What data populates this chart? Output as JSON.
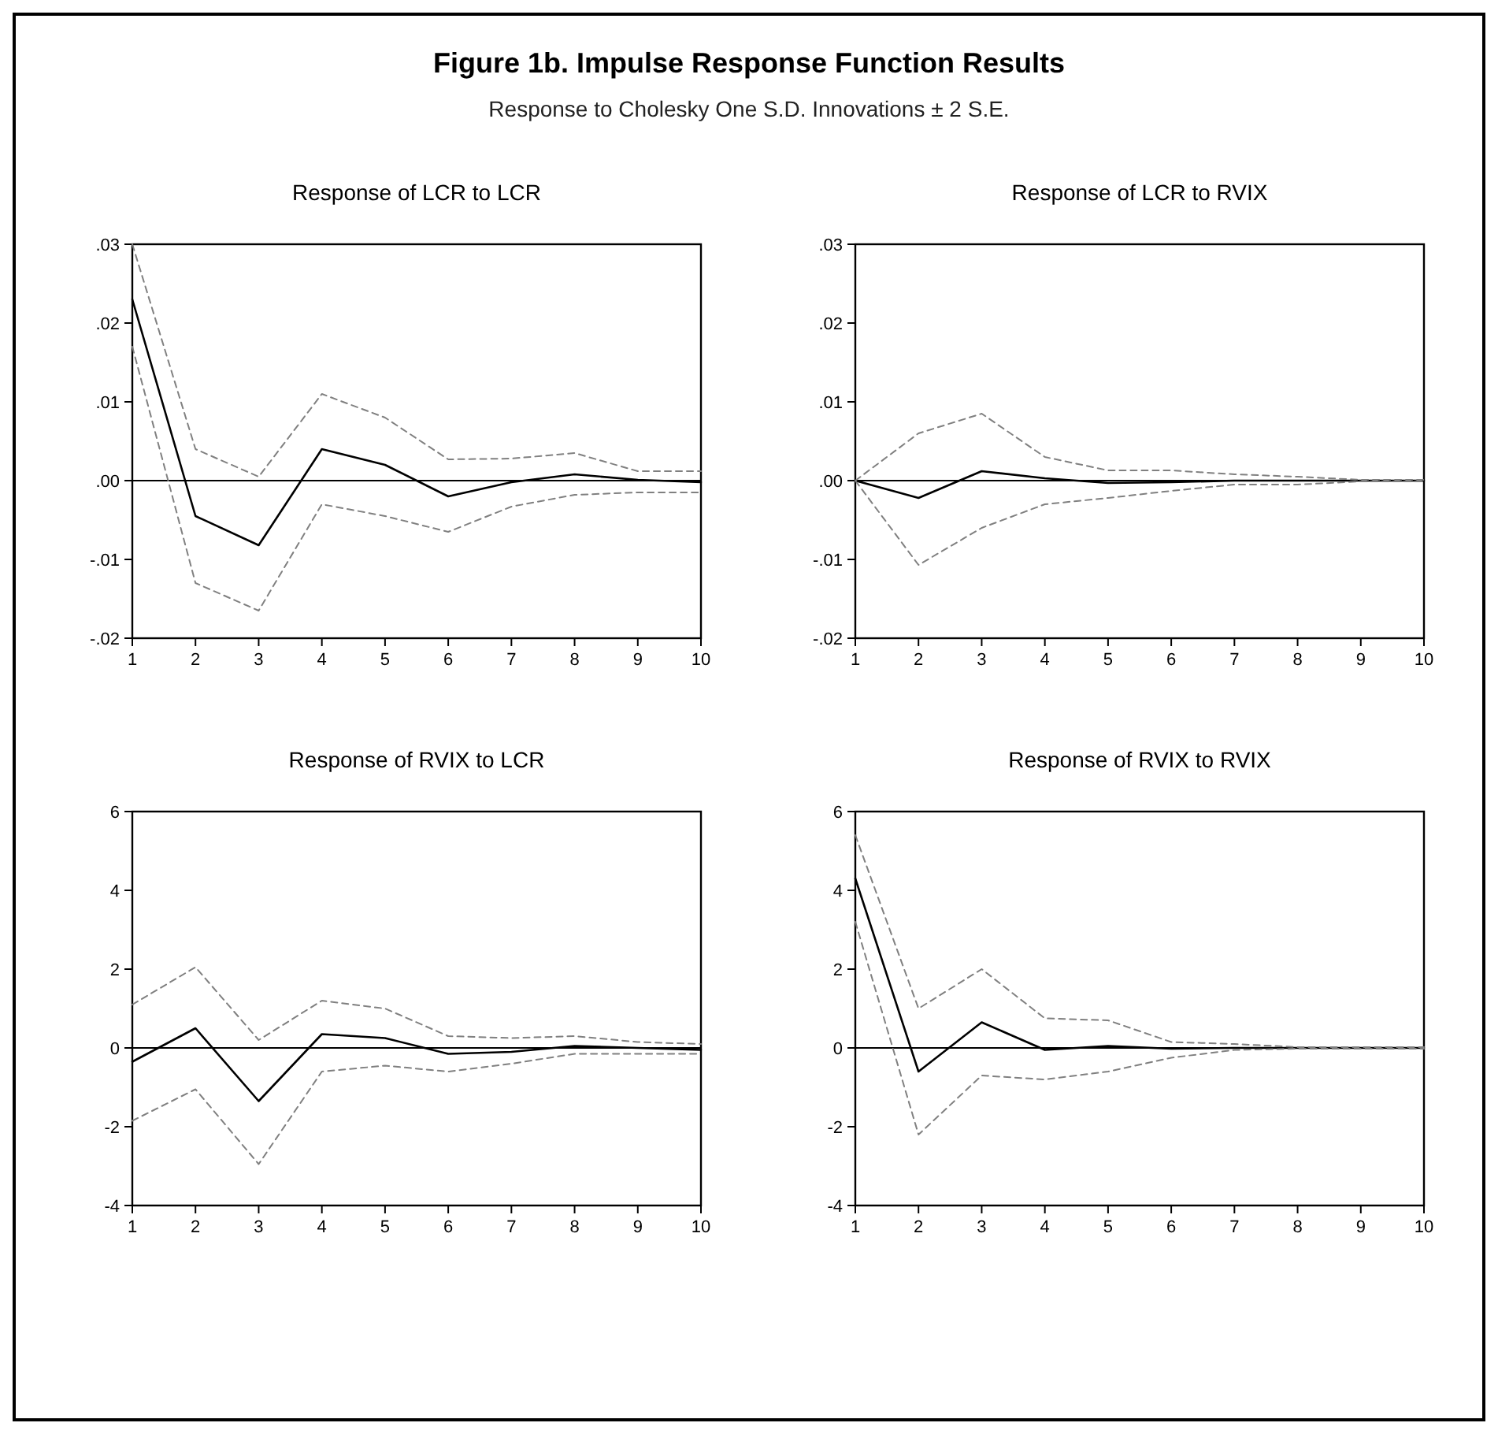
{
  "chart_data": [
    {
      "type": "other",
      "title": "Figure 1b. Impulse Response Function Results",
      "subtitle": "Response to Cholesky One S.D. Innovations ± 2 S.E."
    },
    {
      "type": "line",
      "title": "Response of LCR to LCR",
      "x": [
        1,
        2,
        3,
        4,
        5,
        6,
        7,
        8,
        9,
        10
      ],
      "xlim": [
        1,
        10
      ],
      "xticks": [
        1,
        2,
        3,
        4,
        5,
        6,
        7,
        8,
        9,
        10
      ],
      "ylim": [
        -0.02,
        0.03
      ],
      "yticks": [
        {
          "value": -0.02,
          "label": "-.02"
        },
        {
          "value": -0.01,
          "label": "-.01"
        },
        {
          "value": 0,
          "label": ".00"
        },
        {
          "value": 0.01,
          "label": ".01"
        },
        {
          "value": 0.02,
          "label": ".02"
        },
        {
          "value": 0.03,
          "label": ".03"
        }
      ],
      "grid": false,
      "marker": "none",
      "ref_lines": [
        {
          "axis": "y",
          "value": 0,
          "color": "#000000"
        }
      ],
      "series": [
        {
          "color": "#000000",
          "line_style": "solid",
          "values": [
            0.023,
            -0.0045,
            -0.0082,
            0.004,
            0.002,
            -0.002,
            -0.0002,
            0.0008,
            0.0001,
            -0.0002
          ]
        },
        {
          "color": "#808080",
          "line_style": "dashed",
          "values": [
            0.03,
            0.004,
            0.0005,
            0.011,
            0.008,
            0.0027,
            0.0028,
            0.0035,
            0.0012,
            0.0012
          ]
        },
        {
          "color": "#808080",
          "line_style": "dashed",
          "values": [
            0.017,
            -0.013,
            -0.0165,
            -0.003,
            -0.0045,
            -0.0065,
            -0.0033,
            -0.0018,
            -0.0015,
            -0.0015
          ]
        }
      ]
    },
    {
      "type": "line",
      "title": "Response of LCR to RVIX",
      "x": [
        1,
        2,
        3,
        4,
        5,
        6,
        7,
        8,
        9,
        10
      ],
      "xlim": [
        1,
        10
      ],
      "xticks": [
        1,
        2,
        3,
        4,
        5,
        6,
        7,
        8,
        9,
        10
      ],
      "ylim": [
        -0.02,
        0.03
      ],
      "yticks": [
        {
          "value": -0.02,
          "label": "-.02"
        },
        {
          "value": -0.01,
          "label": "-.01"
        },
        {
          "value": 0,
          "label": ".00"
        },
        {
          "value": 0.01,
          "label": ".01"
        },
        {
          "value": 0.02,
          "label": ".02"
        },
        {
          "value": 0.03,
          "label": ".03"
        }
      ],
      "grid": false,
      "marker": "none",
      "ref_lines": [
        {
          "axis": "y",
          "value": 0,
          "color": "#000000"
        }
      ],
      "series": [
        {
          "color": "#000000",
          "line_style": "solid",
          "values": [
            0,
            -0.0022,
            0.0012,
            0.0003,
            -0.0003,
            -0.0002,
            0,
            0,
            0,
            0
          ]
        },
        {
          "color": "#808080",
          "line_style": "dashed",
          "values": [
            0,
            0.006,
            0.0085,
            0.003,
            0.0013,
            0.0013,
            0.0008,
            0.0005,
            0.0001,
            0.0001
          ]
        },
        {
          "color": "#808080",
          "line_style": "dashed",
          "values": [
            0,
            -0.0107,
            -0.006,
            -0.003,
            -0.0022,
            -0.0013,
            -0.0005,
            -0.0005,
            -0.0001,
            -0.0001
          ]
        }
      ]
    },
    {
      "type": "line",
      "title": "Response of RVIX to LCR",
      "x": [
        1,
        2,
        3,
        4,
        5,
        6,
        7,
        8,
        9,
        10
      ],
      "xlim": [
        1,
        10
      ],
      "xticks": [
        1,
        2,
        3,
        4,
        5,
        6,
        7,
        8,
        9,
        10
      ],
      "ylim": [
        -4,
        6
      ],
      "yticks": [
        -4,
        -2,
        0,
        2,
        4,
        6
      ],
      "grid": false,
      "marker": "none",
      "ref_lines": [
        {
          "axis": "y",
          "value": 0,
          "color": "#000000"
        }
      ],
      "series": [
        {
          "color": "#000000",
          "line_style": "solid",
          "values": [
            -0.35,
            0.5,
            -1.35,
            0.35,
            0.25,
            -0.15,
            -0.1,
            0.05,
            0,
            -0.05
          ]
        },
        {
          "color": "#808080",
          "line_style": "dashed",
          "values": [
            1.1,
            2.05,
            0.2,
            1.2,
            1.0,
            0.3,
            0.25,
            0.3,
            0.15,
            0.1
          ]
        },
        {
          "color": "#808080",
          "line_style": "dashed",
          "values": [
            -1.85,
            -1.05,
            -2.95,
            -0.6,
            -0.45,
            -0.6,
            -0.4,
            -0.15,
            -0.15,
            -0.15
          ]
        }
      ]
    },
    {
      "type": "line",
      "title": "Response of RVIX to RVIX",
      "x": [
        1,
        2,
        3,
        4,
        5,
        6,
        7,
        8,
        9,
        10
      ],
      "xlim": [
        1,
        10
      ],
      "xticks": [
        1,
        2,
        3,
        4,
        5,
        6,
        7,
        8,
        9,
        10
      ],
      "ylim": [
        -4,
        6
      ],
      "yticks": [
        -4,
        -2,
        0,
        2,
        4,
        6
      ],
      "grid": false,
      "marker": "none",
      "ref_lines": [
        {
          "axis": "y",
          "value": 0,
          "color": "#000000"
        }
      ],
      "series": [
        {
          "color": "#000000",
          "line_style": "solid",
          "values": [
            4.3,
            -0.6,
            0.65,
            -0.05,
            0.05,
            -0.02,
            0,
            0,
            0,
            0
          ]
        },
        {
          "color": "#808080",
          "line_style": "dashed",
          "values": [
            5.4,
            1.0,
            2.0,
            0.75,
            0.7,
            0.15,
            0.1,
            0.02,
            0.02,
            0.02
          ]
        },
        {
          "color": "#808080",
          "line_style": "dashed",
          "values": [
            3.2,
            -2.2,
            -0.7,
            -0.8,
            -0.6,
            -0.25,
            -0.05,
            -0.02,
            -0.02,
            -0.02
          ]
        }
      ]
    }
  ]
}
